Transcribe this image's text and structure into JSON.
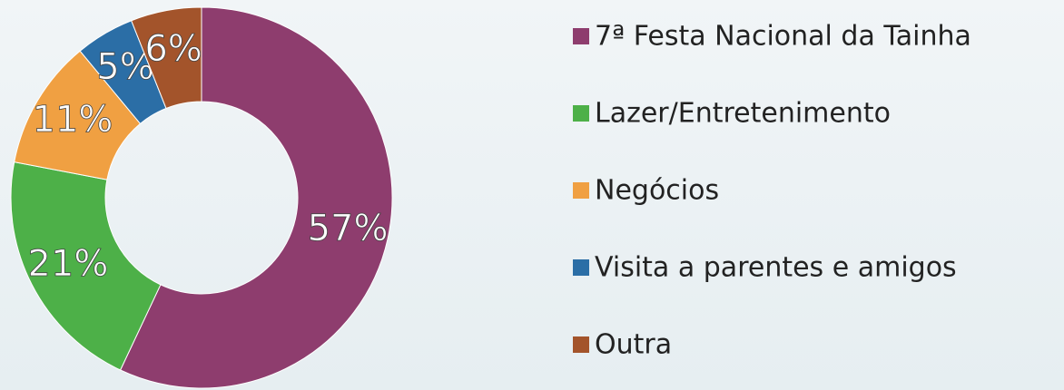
{
  "chart_data": {
    "type": "donut",
    "categories": [
      "7ª Festa Nacional da Tainha",
      "Lazer/Entretenimento",
      "Negócios",
      "Visita a parentes e amigos",
      "Outra"
    ],
    "values": [
      57,
      21,
      11,
      5,
      6
    ],
    "value_labels": [
      "57%",
      "21%",
      "11%",
      "5%",
      "6%"
    ],
    "colors": [
      "#8e3d6e",
      "#4db048",
      "#f0a042",
      "#2b6ea6",
      "#a3542b"
    ],
    "legend": "right"
  }
}
